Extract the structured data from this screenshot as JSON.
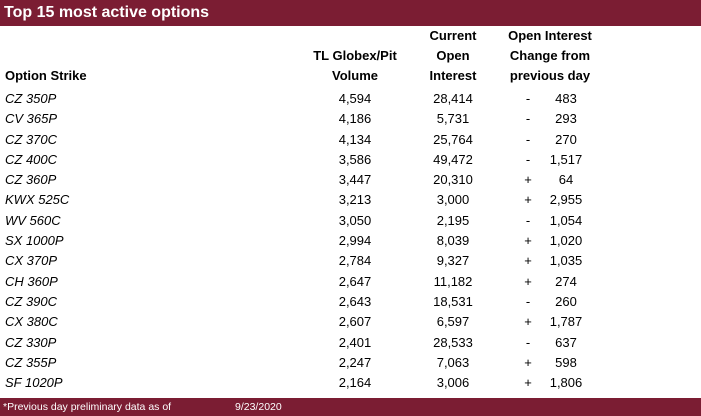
{
  "title": "Top 15 most active options",
  "headers": {
    "strike": "Option Strike",
    "volume": [
      "TL Globex/Pit",
      "Volume"
    ],
    "current_oi": [
      "Current",
      "Open",
      "Interest"
    ],
    "oi_change": [
      "Open Interest",
      "Change from",
      "previous day"
    ]
  },
  "rows": [
    {
      "strike": "CZ 350P",
      "volume": "4,594",
      "oi": "28,414",
      "sign": "-",
      "change": "483"
    },
    {
      "strike": "CV 365P",
      "volume": "4,186",
      "oi": "5,731",
      "sign": "-",
      "change": "293"
    },
    {
      "strike": "CZ 370C",
      "volume": "4,134",
      "oi": "25,764",
      "sign": "-",
      "change": "270"
    },
    {
      "strike": "CZ 400C",
      "volume": "3,586",
      "oi": "49,472",
      "sign": "-",
      "change": "1,517"
    },
    {
      "strike": "CZ 360P",
      "volume": "3,447",
      "oi": "20,310",
      "sign": "+",
      "change": "64"
    },
    {
      "strike": "KWX 525C",
      "volume": "3,213",
      "oi": "3,000",
      "sign": "+",
      "change": "2,955"
    },
    {
      "strike": "WV 560C",
      "volume": "3,050",
      "oi": "2,195",
      "sign": "-",
      "change": "1,054"
    },
    {
      "strike": "SX 1000P",
      "volume": "2,994",
      "oi": "8,039",
      "sign": "+",
      "change": "1,020"
    },
    {
      "strike": "CX 370P",
      "volume": "2,784",
      "oi": "9,327",
      "sign": "+",
      "change": "1,035"
    },
    {
      "strike": "CH 360P",
      "volume": "2,647",
      "oi": "11,182",
      "sign": "+",
      "change": "274"
    },
    {
      "strike": "CZ 390C",
      "volume": "2,643",
      "oi": "18,531",
      "sign": "-",
      "change": "260"
    },
    {
      "strike": "CX 380C",
      "volume": "2,607",
      "oi": "6,597",
      "sign": "+",
      "change": "1,787"
    },
    {
      "strike": "CZ 330P",
      "volume": "2,401",
      "oi": "28,533",
      "sign": "-",
      "change": "637"
    },
    {
      "strike": "CZ 355P",
      "volume": "2,247",
      "oi": "7,063",
      "sign": "+",
      "change": "598"
    },
    {
      "strike": "SF 1020P",
      "volume": "2,164",
      "oi": "3,006",
      "sign": "+",
      "change": "1,806"
    }
  ],
  "footer": {
    "note": "*Previous day preliminary data as of",
    "date": "9/23/2020"
  },
  "colors": {
    "banner": "#7b1d33",
    "banner_text": "#ffffff"
  }
}
